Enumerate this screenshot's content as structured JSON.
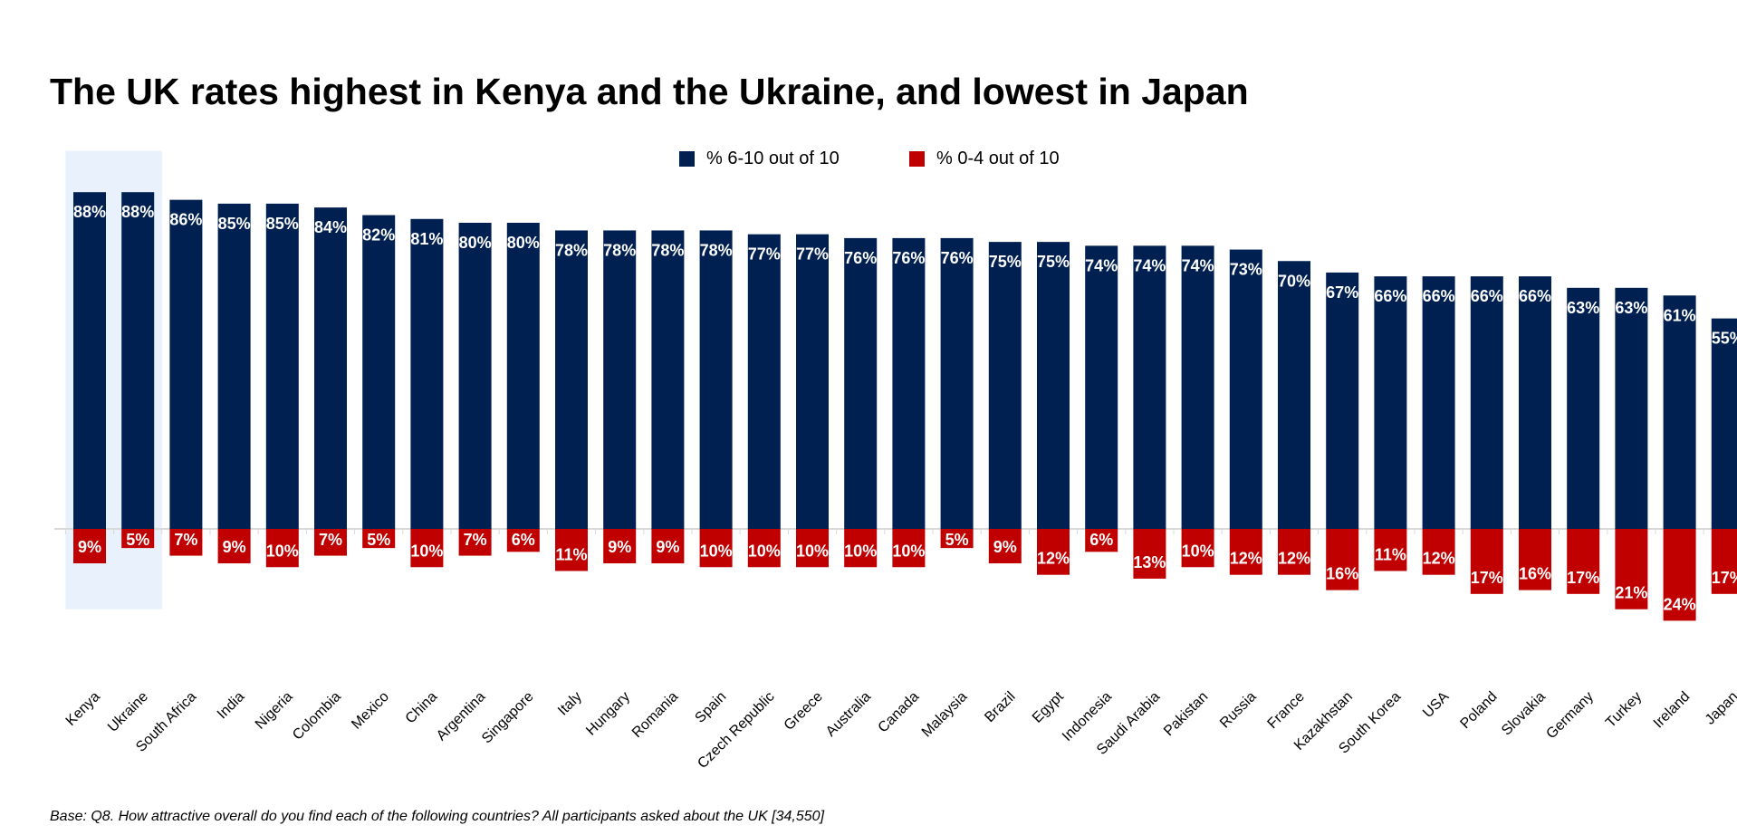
{
  "title": "The UK rates highest in Kenya and the Ukraine, and lowest in Japan",
  "footnote": "Base: Q8. How attractive overall do you find each of the following countries? All participants asked about the UK [34,550]",
  "colors": {
    "positive": "#002051",
    "negative": "#C00000",
    "highlight": "#E8F1FC",
    "axis": "#D9D9D9"
  },
  "chart_data": {
    "type": "bar",
    "categories": [
      "Kenya",
      "Ukraine",
      "South Africa",
      "India",
      "Nigeria",
      "Colombia",
      "Mexico",
      "China",
      "Argentina",
      "Singapore",
      "Italy",
      "Hungary",
      "Romania",
      "Spain",
      "Czech Republic",
      "Greece",
      "Australia",
      "Canada",
      "Malaysia",
      "Brazil",
      "Egypt",
      "Indonesia",
      "Saudi Arabia",
      "Pakistan",
      "Russia",
      "France",
      "Kazakhstan",
      "South Korea",
      "USA",
      "Poland",
      "Slovakia",
      "Germany",
      "Turkey",
      "Ireland",
      "Japan"
    ],
    "series": [
      {
        "name": "% 6-10 out of 10",
        "direction": "up",
        "values": [
          88,
          88,
          86,
          85,
          85,
          84,
          82,
          81,
          80,
          80,
          78,
          78,
          78,
          78,
          77,
          77,
          76,
          76,
          76,
          75,
          75,
          74,
          74,
          74,
          73,
          70,
          67,
          66,
          66,
          66,
          66,
          63,
          63,
          61,
          55
        ]
      },
      {
        "name": "% 0-4 out of 10",
        "direction": "down",
        "values": [
          9,
          5,
          7,
          9,
          10,
          7,
          5,
          10,
          7,
          6,
          11,
          9,
          9,
          10,
          10,
          10,
          10,
          10,
          5,
          9,
          12,
          6,
          13,
          10,
          12,
          12,
          16,
          11,
          12,
          17,
          16,
          17,
          21,
          24,
          17
        ]
      }
    ],
    "value_suffix": "%",
    "highlighted_categories": [
      "Kenya",
      "Ukraine"
    ],
    "legend_position": "top-center",
    "grid": false
  }
}
